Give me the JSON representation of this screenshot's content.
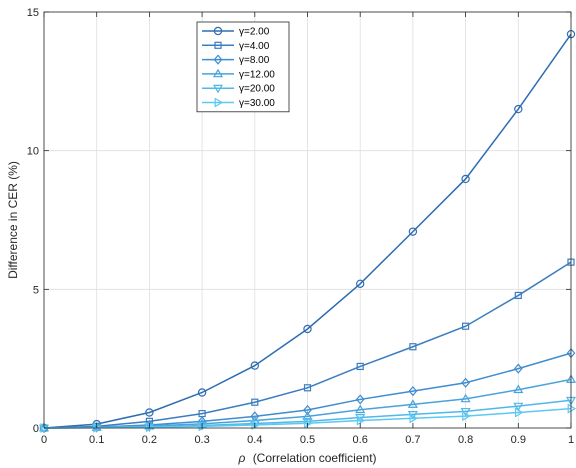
{
  "chart_data": {
    "type": "line",
    "x": [
      0,
      0.1,
      0.2,
      0.3,
      0.4,
      0.5,
      0.6,
      0.7,
      0.8,
      0.9,
      1
    ],
    "x_ticks": [
      0,
      0.1,
      0.2,
      0.3,
      0.4,
      0.5,
      0.6,
      0.7,
      0.8,
      0.9,
      1
    ],
    "x_tick_labels": [
      "0",
      "0.1",
      "0.2",
      "0.3",
      "0.4",
      "0.5",
      "0.6",
      "0.7",
      "0.8",
      "0.9",
      "1"
    ],
    "y_ticks": [
      0,
      5,
      10,
      15
    ],
    "y_tick_labels": [
      "0",
      "5",
      "10",
      "15"
    ],
    "xlim": [
      0,
      1
    ],
    "ylim": [
      0,
      15
    ],
    "xlabel_symbol": "ρ",
    "xlabel": "(Correlation coefficient)",
    "ylabel": "Difference in CER (%)",
    "grid": true,
    "legend_position": "top-center",
    "series": [
      {
        "name": "γ=2.00",
        "marker": "circle",
        "color": "#2e6db2",
        "values": [
          0,
          0.14,
          0.56,
          1.28,
          2.25,
          3.57,
          5.2,
          7.08,
          8.98,
          11.5,
          14.2
        ]
      },
      {
        "name": "γ=4.00",
        "marker": "square",
        "color": "#3a7dc0",
        "values": [
          0,
          0.06,
          0.24,
          0.52,
          0.93,
          1.45,
          2.22,
          2.93,
          3.67,
          4.78,
          5.98
        ]
      },
      {
        "name": "γ=8.00",
        "marker": "diamond",
        "color": "#3f8dd0",
        "values": [
          0,
          0.03,
          0.11,
          0.24,
          0.42,
          0.65,
          1.03,
          1.33,
          1.63,
          2.14,
          2.7
        ]
      },
      {
        "name": "γ=12.00",
        "marker": "triangle-up",
        "color": "#48a2dc",
        "values": [
          0,
          0.02,
          0.07,
          0.15,
          0.27,
          0.42,
          0.66,
          0.85,
          1.05,
          1.38,
          1.75
        ]
      },
      {
        "name": "γ=20.00",
        "marker": "triangle-down",
        "color": "#4fb8ea",
        "values": [
          0,
          0.01,
          0.04,
          0.09,
          0.16,
          0.24,
          0.38,
          0.49,
          0.6,
          0.79,
          1.0
        ]
      },
      {
        "name": "γ=30.00",
        "marker": "triangle-right",
        "color": "#5cc8f4",
        "values": [
          0,
          0.01,
          0.03,
          0.06,
          0.11,
          0.17,
          0.27,
          0.35,
          0.43,
          0.56,
          0.7
        ]
      }
    ]
  }
}
